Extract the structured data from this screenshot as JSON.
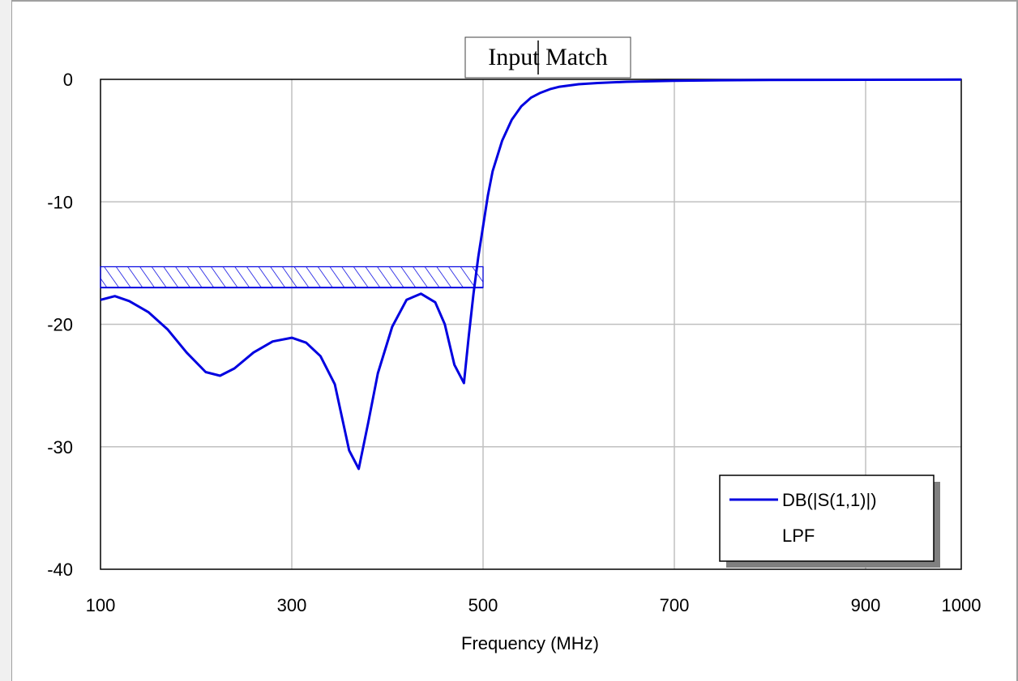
{
  "chart_data": {
    "type": "line",
    "title": "Input Match",
    "xlabel": "Frequency (MHz)",
    "ylabel": "",
    "xlim": [
      100,
      1000
    ],
    "ylim": [
      -40,
      0
    ],
    "x_ticks": [
      100,
      300,
      500,
      700,
      900,
      1000
    ],
    "x_tick_labels": [
      "100",
      "300",
      "500",
      "700",
      "900",
      "1000"
    ],
    "y_ticks": [
      0,
      -10,
      -20,
      -30,
      -40
    ],
    "y_tick_labels": [
      "0",
      "-10",
      "-20",
      "-30",
      "-40"
    ],
    "grid": true,
    "legend_position": "bottom-right",
    "legend": {
      "entry": "DB(|S(1,1)|)",
      "subtitle": "LPF"
    },
    "series_color": "#0000e0",
    "goal": {
      "x_range": [
        100,
        500
      ],
      "y": -17,
      "hatched_band_top": -15.3
    },
    "series": [
      {
        "name": "DB(|S(1,1)|)",
        "x": [
          100,
          115,
          130,
          150,
          170,
          190,
          210,
          225,
          240,
          260,
          280,
          300,
          315,
          330,
          345,
          360,
          370,
          380,
          390,
          405,
          420,
          435,
          450,
          460,
          470,
          480,
          485,
          490,
          495,
          500,
          505,
          510,
          520,
          530,
          540,
          550,
          560,
          570,
          580,
          600,
          620,
          650,
          700,
          750,
          800,
          900,
          1000
        ],
        "y": [
          -18.0,
          -17.7,
          -18.1,
          -19.0,
          -20.4,
          -22.3,
          -23.9,
          -24.2,
          -23.6,
          -22.3,
          -21.4,
          -21.1,
          -21.5,
          -22.6,
          -24.9,
          -30.3,
          -31.8,
          -28.0,
          -24.0,
          -20.2,
          -18.0,
          -17.5,
          -18.2,
          -20.0,
          -23.3,
          -24.8,
          -21.0,
          -17.5,
          -14.5,
          -12.0,
          -9.5,
          -7.5,
          -5.0,
          -3.3,
          -2.2,
          -1.5,
          -1.1,
          -0.8,
          -0.6,
          -0.4,
          -0.3,
          -0.2,
          -0.12,
          -0.07,
          -0.05,
          -0.03,
          -0.02
        ]
      }
    ]
  }
}
